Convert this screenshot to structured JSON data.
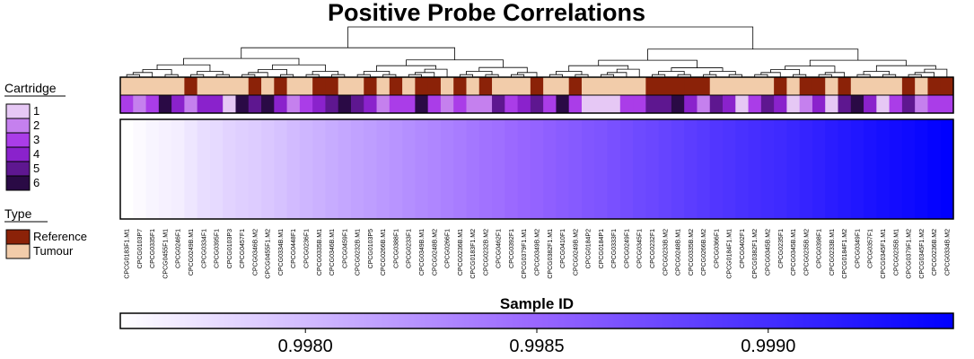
{
  "chart_data": {
    "type": "heatmap",
    "title": "Positive Probe Correlations",
    "xlabel": "Sample ID",
    "samples": [
      "CPCG0183F1.M1",
      "CPCG0103P7",
      "CPCG0335F1",
      "CPCG0455F1.M1",
      "CPCG0246F1",
      "CPCG0249B.M1",
      "CPCG0334F1",
      "CPCG0395F1",
      "CPCG0103P3",
      "CPCG0457F1",
      "CPCG0346B.M2",
      "CPCG0455F1.M2",
      "CPCG0334B.M1",
      "CPCG0448F1",
      "CPCG0236F1",
      "CPCG0335B.M1",
      "CPCG0346B.M1",
      "CPCG0459F1",
      "CPCG0232B.M1",
      "CPCG0103P5",
      "CPCG0266B.M1",
      "CPCG0388F1",
      "CPCG0233F1",
      "CPCG0349B.M1",
      "CPCG0248B.M2",
      "CPCG0266F1",
      "CPCG0236B.M1",
      "CPCG0183F1.M2",
      "CPCG0232B.M2",
      "CPCG0462F1",
      "CPCG0392F1",
      "CPCG0379F1.M1",
      "CPCG0349B.M2",
      "CPCG0382F1.M1",
      "CPCG0410F1",
      "CPCG0249B.M2",
      "CPCG0184P2",
      "CPCG0184P1",
      "CPCG0333F1",
      "CPCG0249F1",
      "CPCG0345F1",
      "CPCG0232F1",
      "CPCG0233B.M2",
      "CPCG0248B.M1",
      "CPCG0335B.M2",
      "CPCG0266B.M2",
      "CPCG0366F1",
      "CPCG0184F1.M1",
      "CPCG0402F1",
      "CPCG0382F1.M2",
      "CPCG0345B.M2",
      "CPCG0235F1",
      "CPCG0345B.M1",
      "CPCG0235B.M2",
      "CPCG0398F1",
      "CPCG0233B.M1",
      "CPCG0184F1.M2",
      "CPCG0349F1",
      "CPCG0357F1",
      "CPCG0345F1.M1",
      "CPCG0235B.M1",
      "CPCG0379F1.M2",
      "CPCG0345F1.M2",
      "CPCG0236B.M2",
      "CPCG0334B.M2"
    ],
    "type_row": [
      "T",
      "T",
      "T",
      "T",
      "T",
      "R",
      "T",
      "T",
      "T",
      "T",
      "R",
      "T",
      "R",
      "T",
      "T",
      "R",
      "R",
      "T",
      "T",
      "R",
      "T",
      "R",
      "T",
      "R",
      "R",
      "T",
      "R",
      "T",
      "R",
      "T",
      "T",
      "T",
      "R",
      "T",
      "T",
      "R",
      "T",
      "T",
      "T",
      "T",
      "T",
      "R",
      "R",
      "R",
      "R",
      "R",
      "T",
      "T",
      "T",
      "T",
      "T",
      "R",
      "T",
      "R",
      "R",
      "T",
      "R",
      "T",
      "T",
      "T",
      "T",
      "R",
      "T",
      "R",
      "R"
    ],
    "cartridge_row": [
      3,
      2,
      3,
      6,
      4,
      2,
      4,
      4,
      1,
      6,
      5,
      6,
      4,
      2,
      3,
      4,
      5,
      6,
      5,
      4,
      2,
      3,
      3,
      6,
      3,
      2,
      3,
      2,
      2,
      5,
      3,
      4,
      5,
      3,
      6,
      3,
      1,
      1,
      1,
      3,
      3,
      5,
      5,
      6,
      4,
      2,
      5,
      4,
      1,
      3,
      5,
      4,
      1,
      2,
      4,
      1,
      5,
      6,
      4,
      1,
      3,
      5,
      2,
      3,
      3
    ],
    "values": [
      0.9976,
      0.99763,
      0.99766,
      0.99768,
      0.9977,
      0.99775,
      0.9978,
      0.99782,
      0.99786,
      0.99788,
      0.9979,
      0.99793,
      0.99796,
      0.998,
      0.99803,
      0.99806,
      0.99809,
      0.99812,
      0.99815,
      0.99817,
      0.9982,
      0.99823,
      0.99826,
      0.99829,
      0.99831,
      0.99834,
      0.99837,
      0.9984,
      0.99843,
      0.99845,
      0.99848,
      0.99851,
      0.99853,
      0.99856,
      0.99859,
      0.99861,
      0.99864,
      0.99866,
      0.99869,
      0.99872,
      0.99875,
      0.99877,
      0.9988,
      0.99883,
      0.99886,
      0.99889,
      0.99892,
      0.99894,
      0.99897,
      0.99899,
      0.99901,
      0.99903,
      0.99906,
      0.99909,
      0.99912,
      0.99915,
      0.99918,
      0.99921,
      0.99924,
      0.99927,
      0.99929,
      0.99931,
      0.99934,
      0.99937,
      0.9994
    ],
    "color_scale": {
      "min": 0.9976,
      "max": 0.9994,
      "low": "#ffffff",
      "mid": "#9966ff",
      "high": "#0000ff"
    },
    "colorbar": {
      "ticks": [
        0.998,
        0.9985,
        0.999
      ],
      "tick_labels": [
        "0.9980",
        "0.9985",
        "0.9990"
      ]
    },
    "legends": {
      "cartridge": {
        "title": "Cartridge",
        "items": [
          {
            "label": "1",
            "color": "#E6C8F5"
          },
          {
            "label": "2",
            "color": "#C580EE"
          },
          {
            "label": "3",
            "color": "#AA3DE8"
          },
          {
            "label": "4",
            "color": "#8A22CC"
          },
          {
            "label": "5",
            "color": "#5E1790"
          },
          {
            "label": "6",
            "color": "#2A0A45"
          }
        ]
      },
      "type": {
        "title": "Type",
        "items": [
          {
            "key": "R",
            "label": "Reference",
            "color": "#8B2208"
          },
          {
            "key": "T",
            "label": "Tumour",
            "color": "#F2CCAA"
          }
        ]
      }
    }
  }
}
